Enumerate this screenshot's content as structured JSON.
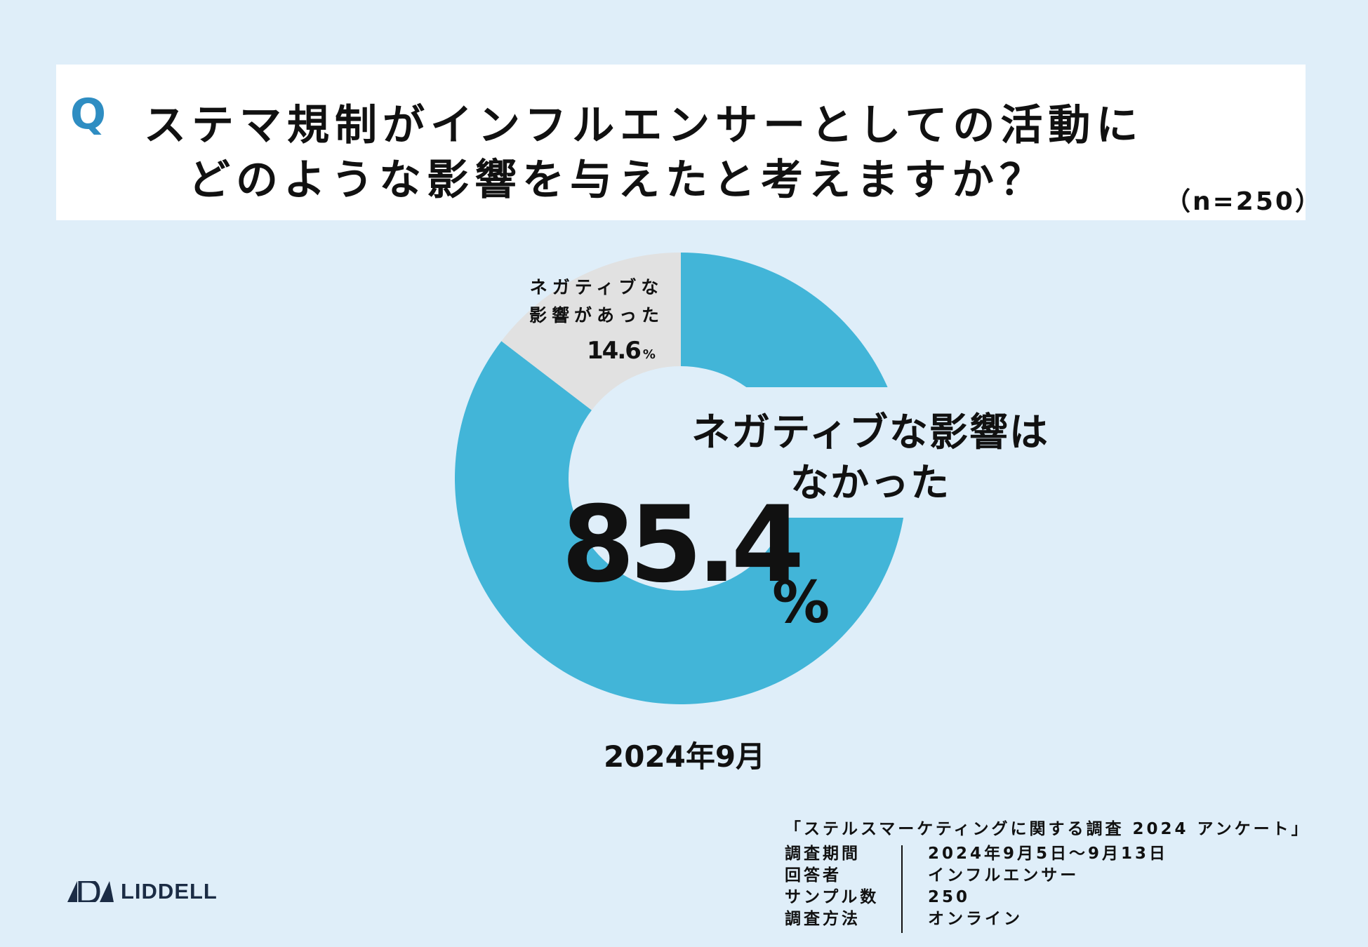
{
  "question": {
    "mark": "Q",
    "line1": "ステマ規制がインフルエンサーとしての活動に",
    "line2": "どのような影響を与えたと考えますか？",
    "sample": "（n=250）"
  },
  "chart_data": {
    "type": "pie",
    "title": "",
    "categories": [
      "ネガティブな影響はなかった",
      "ネガティブな影響があった"
    ],
    "values": [
      85.4,
      14.6
    ],
    "unit": "%",
    "colors": [
      "#42b5d8",
      "#e1e1e1"
    ],
    "labels": {
      "major": "ネガティブな影響はなかった",
      "major_line1": "ネガティブな影響は",
      "major_line2": "なかった",
      "major_value": "85.4",
      "major_unit": "%",
      "minor_line1": "ネガティブな",
      "minor_line2": "影響があった",
      "minor_value": "14.6",
      "minor_unit": "%"
    },
    "date": "2024年9月"
  },
  "survey": {
    "title": "「ステルスマーケティングに関する調査 2024 アンケート」",
    "rows": [
      {
        "key": "調査期間",
        "value": "2024年9月5日〜9月13日"
      },
      {
        "key": "回答者",
        "value": "インフルエンサー"
      },
      {
        "key": "サンプル数",
        "value": "250"
      },
      {
        "key": "調査方法",
        "value": "オンライン"
      }
    ]
  },
  "logo": {
    "text": "LIDDELL",
    "color": "#1b2c45"
  }
}
